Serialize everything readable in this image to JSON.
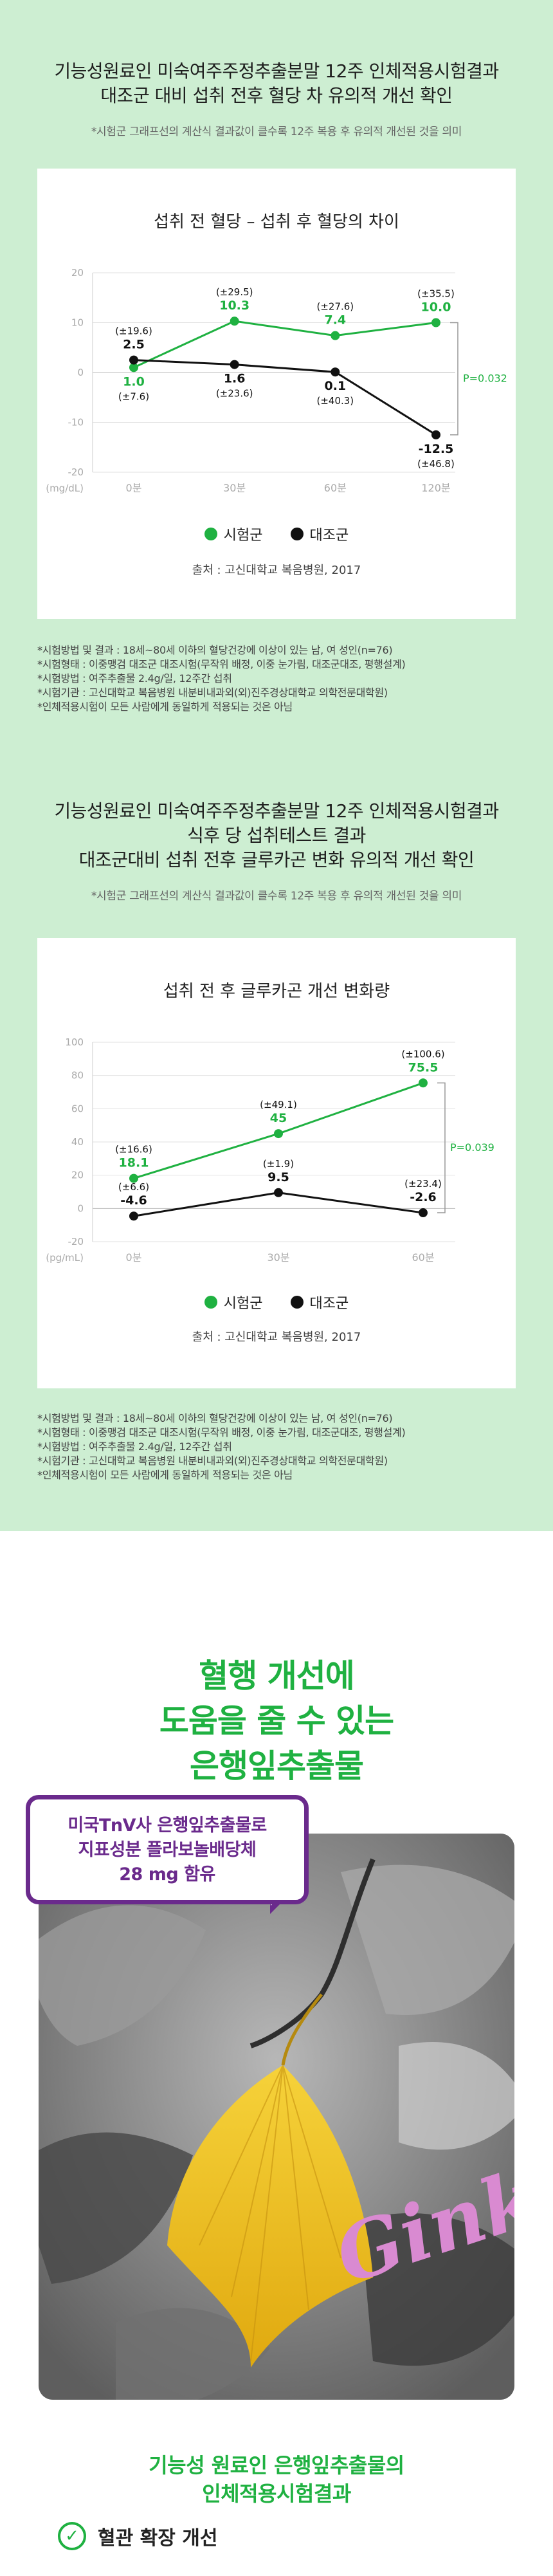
{
  "section1": {
    "headline_line1": "기능성원료인 미숙여주주정추출분말 12주 인체적용시험결과",
    "headline_line2": "대조군 대비 섭취 전후 혈당 차 유의적 개선 확인",
    "note": "*시험군 그래프선의 계산식 결과값이 클수록 12주 복용 후 유의적 개선된 것을 의미"
  },
  "section2": {
    "headline_line1": "기능성원료인 미숙여주주정추출분말 12주 인체적용시험결과",
    "headline_line2": "식후 당 섭취테스트 결과",
    "headline_line3": "대조군대비 섭취 전후 글루카곤 변화 유의적 개선 확인",
    "note": "*시험군 그래프선의 계산식 결과값이 클수록 12주 복용 후 유의적 개선된 것을 의미"
  },
  "chart_data": [
    {
      "type": "line",
      "title": "섭취 전 혈당 – 섭취 후 혈당의 차이",
      "unit_label": "(mg/dL)",
      "categories": [
        "0분",
        "30분",
        "60분",
        "120분"
      ],
      "yticks": [
        "20",
        "10",
        "0",
        "-10",
        "-20"
      ],
      "ylim": [
        -20,
        20
      ],
      "grid": true,
      "series": [
        {
          "name": "시험군",
          "color": "#1fb141",
          "values": [
            1.0,
            10.3,
            7.4,
            10.0
          ],
          "labels": [
            "1.0",
            "10.3",
            "7.4",
            "10.0"
          ],
          "sd": [
            "(±7.6)",
            "(±29.5)",
            "(±27.6)",
            "(±35.5)"
          ]
        },
        {
          "name": "대조군",
          "color": "#111111",
          "values": [
            2.5,
            1.6,
            0.1,
            -12.5
          ],
          "labels": [
            "2.5",
            "1.6",
            "0.1",
            "-12.5"
          ],
          "sd": [
            "(±19.6)",
            "(±23.6)",
            "(±40.3)",
            "(±46.8)"
          ]
        }
      ],
      "pvalue": "P=0.032",
      "source": "출처 : 고신대학교 복음병원, 2017",
      "legend": "bottom"
    },
    {
      "type": "line",
      "title": "섭취 전 후 글루카곤 개선 변화량",
      "unit_label": "(pg/mL)",
      "categories": [
        "0분",
        "30분",
        "60분"
      ],
      "yticks": [
        "100",
        "80",
        "60",
        "40",
        "20",
        "0",
        "-20"
      ],
      "ylim": [
        -20,
        100
      ],
      "grid": true,
      "series": [
        {
          "name": "시험군",
          "color": "#1fb141",
          "values": [
            18.1,
            45,
            75.5
          ],
          "labels": [
            "18.1",
            "45",
            "75.5"
          ],
          "sd": [
            "(±16.6)",
            "(±49.1)",
            "(±100.6)"
          ]
        },
        {
          "name": "대조군",
          "color": "#111111",
          "values": [
            -4.6,
            9.5,
            -2.6
          ],
          "labels": [
            "-4.6",
            "9.5",
            "-2.6"
          ],
          "sd": [
            "(±6.6)",
            "(±1.9)",
            "(±23.4)"
          ]
        }
      ],
      "pvalue": "P=0.039",
      "source": "출처 : 고신대학교 복음병원, 2017",
      "legend": "bottom"
    }
  ],
  "notes1": [
    "*시험방법 및 결과 : 18세~80세 이하의 혈당건강에 이상이 있는 남, 여 성인(n=76)",
    "*시험형태 : 이중맹검 대조군 대조시험(무작위 배정, 이중 눈가림, 대조군대조, 평행설계)",
    "*시험방법 : 여주추출물 2.4g/일, 12주간 섭취",
    "*시험기관 : 고신대학교 복음병원 내분비내과외(외)진주경상대학교 의학전문대학원)",
    "*인체적용시험이 모든 사람에게 동일하게 적용되는 것은 아님"
  ],
  "notes2": [
    "*시험방법 및 결과 : 18세~80세 이하의 혈당건강에 이상이 있는 남, 여 성인(n=76)",
    "*시험형태 : 이중맹검 대조군 대조시험(무작위 배정, 이중 눈가림, 대조군대조, 평행설계)",
    "*시험방법 : 여주추출물 2.4g/일, 12주간 섭취",
    "*시험기관 : 고신대학교 복음병원 내분비내과외(외)진주경상대학교 의학전문대학원)",
    "*인체적용시험이 모든 사람에게 동일하게 적용되는 것은 아님"
  ],
  "ginkgo": {
    "title_line1": "혈행 개선에",
    "title_line2": "도움을 줄 수 있는",
    "title_line3": "은행잎추출물",
    "bubble_line1": "미국TnV사 은행잎추출물로",
    "bubble_line2": "지표성분 플라보놀배당체",
    "bubble_line3": "28 mg 함유",
    "photo_word": "Ginkgo",
    "subtitle_line1": "기능성 원료인 은행잎추출물의",
    "subtitle_line2": "인체적용시험결과",
    "benefits": [
      "혈관 확장 개선"
    ]
  },
  "colors": {
    "accent_green": "#1fb141",
    "control_black": "#111111",
    "bg_mint": "#cdeed2",
    "bubble_purple": "#6a2a8c",
    "ginkgo_word_pink": "#d98ad1"
  }
}
